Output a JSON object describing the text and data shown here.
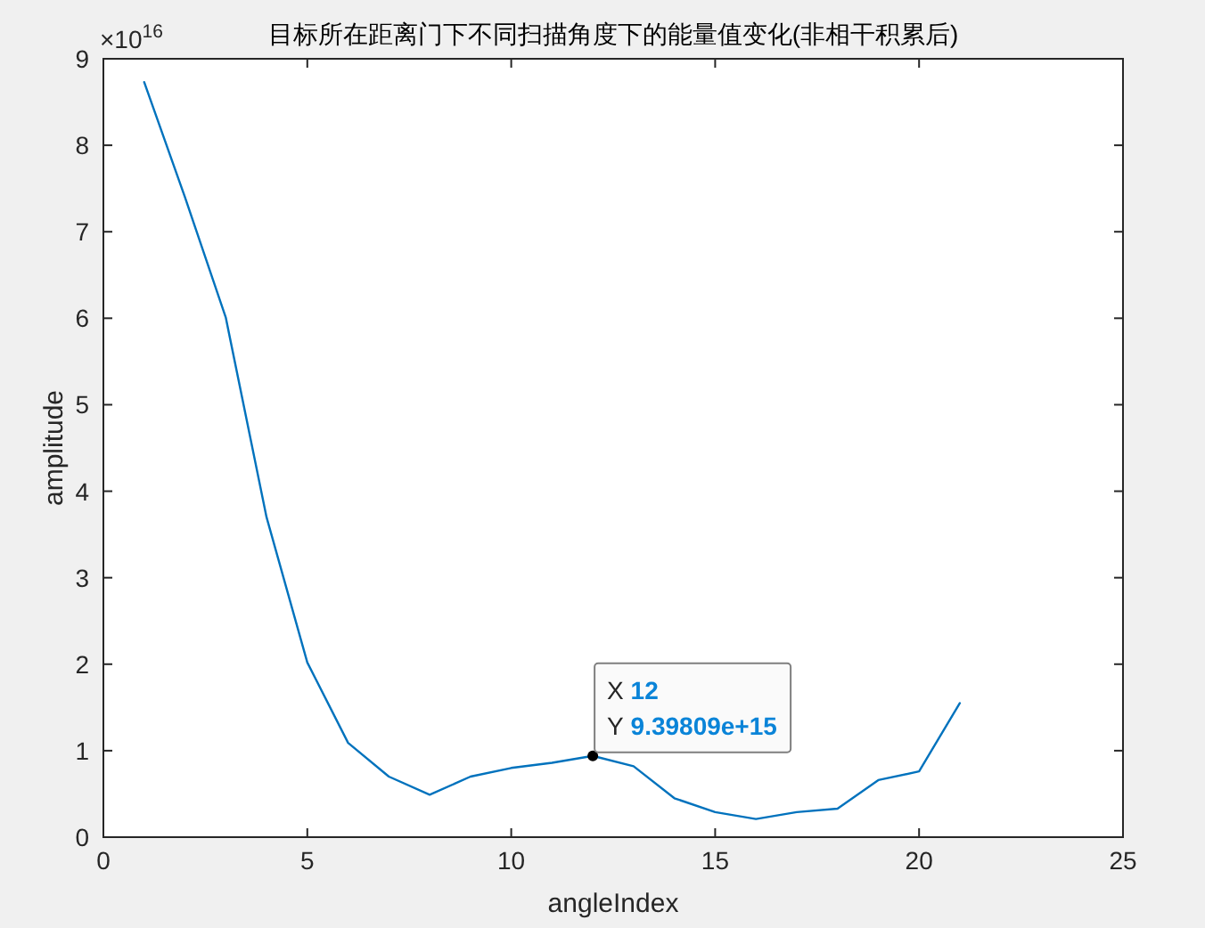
{
  "chart_data": {
    "type": "line",
    "title": "目标所在距离门下不同扫描角度下的能量值变化(非相干积累后)",
    "xlabel": "angleIndex",
    "ylabel": "amplitude",
    "x": [
      1,
      2,
      3,
      4,
      5,
      6,
      7,
      8,
      9,
      10,
      11,
      12,
      13,
      14,
      15,
      16,
      17,
      18,
      19,
      20,
      21
    ],
    "series": [
      {
        "color": "#0072bd",
        "values": [
          8.73,
          7.4,
          6.01,
          3.7,
          2.02,
          1.09,
          0.7,
          0.49,
          0.7,
          0.8,
          0.86,
          0.94,
          0.82,
          0.45,
          0.29,
          0.21,
          0.29,
          0.33,
          0.66,
          0.76,
          1.55
        ]
      }
    ],
    "xlim": [
      0,
      25
    ],
    "xticks": [
      0,
      5,
      10,
      15,
      20,
      25
    ],
    "ylim": [
      0,
      9
    ],
    "yticks": [
      0,
      1,
      2,
      3,
      4,
      5,
      6,
      7,
      8,
      9
    ],
    "annotations": [
      "×10$^{16}$",
      {
        "text": "X 12\nY 9.39809e+15",
        "x": 12,
        "y": 0.94
      }
    ],
    "marker": "none",
    "line_style": "solid"
  }
}
